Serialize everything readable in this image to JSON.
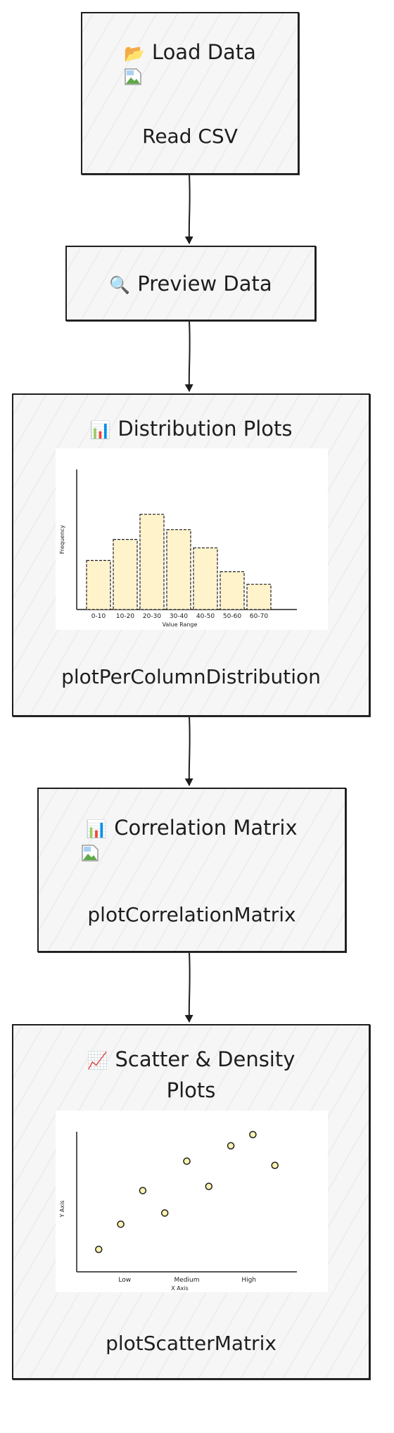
{
  "nodes": {
    "load": {
      "icon": "📂",
      "icon_name": "folder-icon",
      "title": "Load Data",
      "sub": "Read CSV"
    },
    "preview": {
      "icon": "🔍",
      "icon_name": "magnifier-icon",
      "title": "Preview Data"
    },
    "dist": {
      "icon": "📊",
      "icon_name": "bar-chart-icon",
      "title": "Distribution Plots",
      "sub": "plotPerColumnDistribution"
    },
    "corr": {
      "icon": "📊",
      "icon_name": "bar-chart-icon",
      "title": "Correlation Matrix",
      "sub": "plotCorrelationMatrix"
    },
    "scatter": {
      "icon": "📈",
      "icon_name": "line-chart-icon",
      "title_line1": "Scatter & Density",
      "title_line2": "Plots",
      "sub": "plotScatterMatrix"
    }
  },
  "dist_chart": {
    "type": "bar",
    "categories": [
      "0-10",
      "10-20",
      "20-30",
      "30-40",
      "40-50",
      "50-60",
      "60-70"
    ],
    "values": [
      35,
      50,
      68,
      57,
      44,
      27,
      18
    ],
    "xlabel": "Value Range",
    "ylabel": "Frequency",
    "ylim": [
      0,
      100
    ],
    "bar_color": "#fff3cc"
  },
  "scatter_chart": {
    "type": "scatter",
    "x_ticks": [
      "Low",
      "Medium",
      "High"
    ],
    "xlabel": "X Axis",
    "ylabel": "Y Axis",
    "xlim": [
      0,
      10
    ],
    "ylim": [
      0,
      10
    ],
    "points": [
      [
        1,
        1.6
      ],
      [
        2,
        3.4
      ],
      [
        3,
        5.8
      ],
      [
        4,
        4.2
      ],
      [
        5,
        7.9
      ],
      [
        6,
        6.1
      ],
      [
        7,
        9.0
      ],
      [
        8,
        9.8
      ],
      [
        9,
        7.6
      ]
    ],
    "point_color": "#fff3b0"
  }
}
